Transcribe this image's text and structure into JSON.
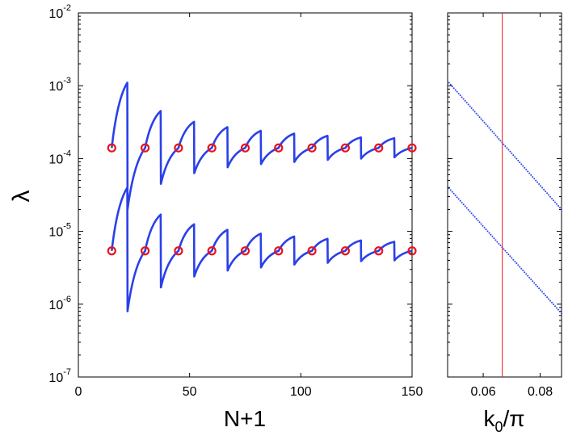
{
  "chart_data": [
    {
      "type": "line",
      "panel": "main",
      "xlabel": "N+1",
      "ylabel": "λ",
      "xlim": [
        0,
        150
      ],
      "ylim_log10": [
        -7,
        -2
      ],
      "x_ticks": [
        0,
        50,
        100,
        150
      ],
      "x_tick_labels": [
        "0",
        "50",
        "100",
        "150"
      ],
      "y_ticks_exp": [
        -7,
        -6,
        -5,
        -4,
        -3,
        -2
      ],
      "y_tick_labels": [
        {
          "base": "10",
          "exp": "-7"
        },
        {
          "base": "10",
          "exp": "-6"
        },
        {
          "base": "10",
          "exp": "-5"
        },
        {
          "base": "10",
          "exp": "-4"
        },
        {
          "base": "10",
          "exp": "-3"
        },
        {
          "base": "10",
          "exp": "-2"
        }
      ],
      "line_color": "#2a40e8",
      "marker_color": "#e8141c",
      "period": 7.5,
      "series": [
        {
          "name": "upper",
          "x": [
            15,
            22,
            22.1,
            30,
            37,
            37.1,
            45,
            52,
            52.1,
            60,
            67,
            67.1,
            75,
            82,
            82.1,
            90,
            97,
            97.1,
            105,
            112,
            112.1,
            120,
            127,
            127.1,
            135,
            142,
            142.1,
            150
          ],
          "y": [
            0.00014,
            0.0011,
            2e-05,
            0.00014,
            0.00045,
            4.5e-05,
            0.00014,
            0.00032,
            6.3e-05,
            0.00014,
            0.00027,
            7.6e-05,
            0.00014,
            0.00024,
            8.4e-05,
            0.00014,
            0.00022,
            9e-05,
            0.00014,
            0.000205,
            9.6e-05,
            0.00014,
            0.000195,
            0.0001,
            0.00014,
            0.00019,
            0.000104,
            0.00014
          ]
        },
        {
          "name": "lower",
          "x": [
            15,
            22,
            22.1,
            30,
            37,
            37.1,
            45,
            52,
            52.1,
            60,
            67,
            67.1,
            75,
            82,
            82.1,
            90,
            97,
            97.1,
            105,
            112,
            112.1,
            120,
            127,
            127.1,
            135,
            142,
            142.1,
            150
          ],
          "y": [
            5.4e-06,
            4e-05,
            8e-07,
            5.4e-06,
            1.7e-05,
            1.7e-06,
            5.4e-06,
            1.25e-05,
            2.4e-06,
            5.4e-06,
            1.05e-05,
            2.9e-06,
            5.4e-06,
            9.3e-06,
            3.2e-06,
            5.4e-06,
            8.5e-06,
            3.5e-06,
            5.4e-06,
            7.9e-06,
            3.7e-06,
            5.4e-06,
            7.5e-06,
            3.9e-06,
            5.4e-06,
            7.2e-06,
            4e-06,
            5.4e-06
          ]
        }
      ],
      "markers": [
        {
          "name": "upper-markers",
          "x": [
            15,
            30,
            45,
            60,
            75,
            90,
            105,
            120,
            135,
            150
          ],
          "y": 0.00014
        },
        {
          "name": "lower-markers",
          "x": [
            15,
            30,
            45,
            60,
            75,
            90,
            105,
            120,
            135,
            150
          ],
          "y": 5.4e-06
        }
      ]
    },
    {
      "type": "scatter",
      "panel": "side",
      "xlabel": "k",
      "xlabel_sub": "0",
      "xlabel_tail": "/π",
      "xlim": [
        0.0475,
        0.0875
      ],
      "ylim_log10": [
        -7,
        -2
      ],
      "x_ticks": [
        0.06,
        0.08
      ],
      "x_tick_labels": [
        "0.06",
        "0.08"
      ],
      "vline_x": 0.0667,
      "vline_color": "#e8141c",
      "dot_color": "#2a40e8",
      "series": [
        {
          "name": "upper",
          "x_range": [
            0.048,
            0.0875
          ],
          "y_at_start": 0.0011,
          "y_at_vline": 0.00014,
          "y_at_end": 2e-05
        },
        {
          "name": "lower",
          "x_range": [
            0.048,
            0.0875
          ],
          "y_at_start": 3.9e-05,
          "y_at_vline": 5.4e-06,
          "y_at_end": 7.5e-07
        }
      ]
    }
  ]
}
